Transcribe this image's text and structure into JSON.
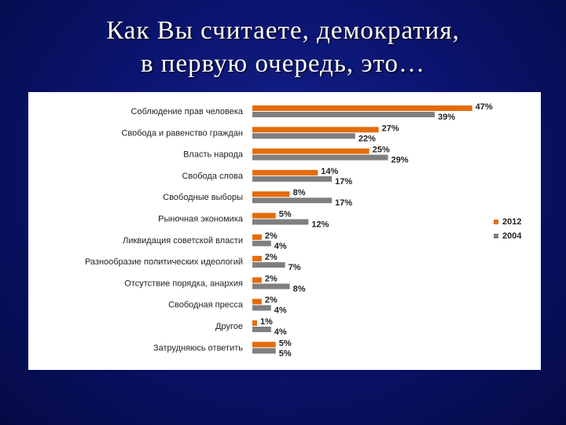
{
  "slide": {
    "title_line1": "Как Вы считаете, демократия,",
    "title_line2": "в первую очередь, это…"
  },
  "chart_data": {
    "type": "bar",
    "orientation": "horizontal",
    "title": "",
    "xlabel": "",
    "ylabel": "",
    "xlim": [
      0,
      50
    ],
    "grid": false,
    "legend_position": "right",
    "categories": [
      "Соблюдение прав человека",
      "Свобода и равенство граждан",
      "Власть народа",
      "Свобода слова",
      "Свободные выборы",
      "Рыночная экономика",
      "Ликвидация советской власти",
      "Разнообразие политических идеологий",
      "Отсутствие порядка, анархия",
      "Свободная пресса",
      "Другое",
      "Затрудняюсь ответить"
    ],
    "series": [
      {
        "name": "2012",
        "color": "#e46c0a",
        "values": [
          47,
          27,
          25,
          14,
          8,
          5,
          2,
          2,
          2,
          2,
          1,
          5
        ],
        "labels": [
          "47%",
          "27%",
          "25%",
          "14%",
          "8%",
          "5%",
          "2%",
          "2%",
          "2%",
          "2%",
          "1%",
          "5%"
        ]
      },
      {
        "name": "2004",
        "color": "#7f7f7f",
        "values": [
          39,
          22,
          29,
          17,
          17,
          12,
          4,
          7,
          8,
          4,
          4,
          5
        ],
        "labels": [
          "39%",
          "22%",
          "29%",
          "17%",
          "17%",
          "12%",
          "4%",
          "7%",
          "8%",
          "4%",
          "4%",
          "5%"
        ]
      }
    ]
  }
}
